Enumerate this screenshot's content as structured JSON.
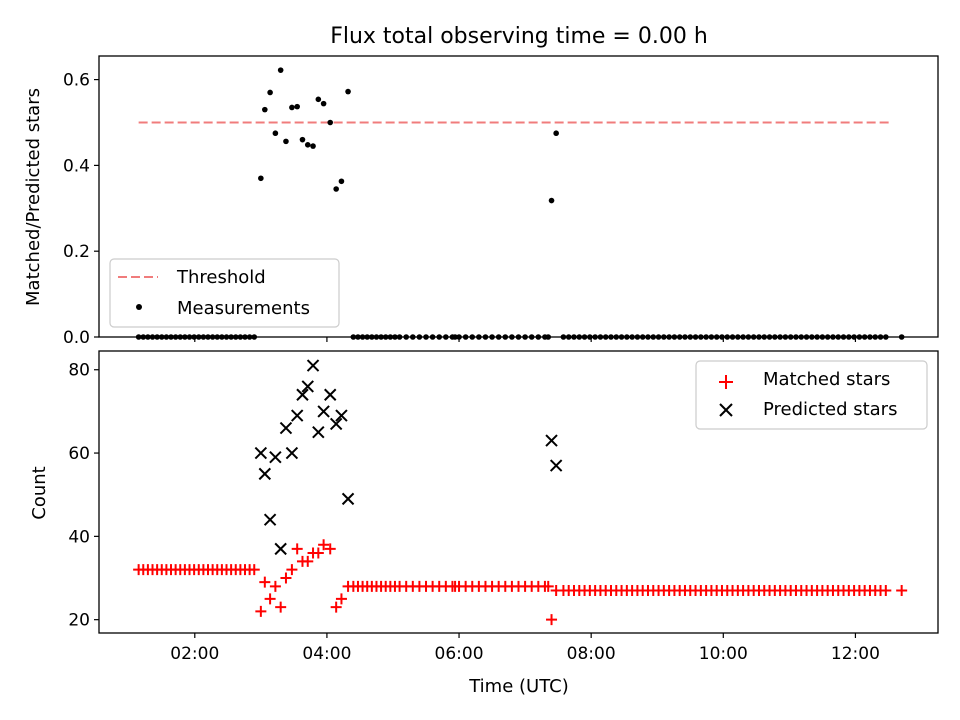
{
  "chart_data": [
    {
      "type": "scatter",
      "title": "Flux total observing time = 0.00 h",
      "xlabel": "",
      "ylabel": "Matched/Predicted stars",
      "xlim": [
        0.55,
        13.25
      ],
      "ylim": [
        0.0,
        0.655
      ],
      "yticks": [
        0.0,
        0.2,
        0.4,
        0.6
      ],
      "ytick_labels": [
        "0.0",
        "0.2",
        "0.4",
        "0.6"
      ],
      "xticks": [
        2,
        4,
        6,
        8,
        10,
        12
      ],
      "legend_position": "lower-left",
      "threshold": {
        "name": "Threshold",
        "value": 0.5,
        "x_range": [
          1.15,
          12.55
        ],
        "color": "#f07c7c"
      },
      "series": [
        {
          "name": "Measurements",
          "color": "#000000",
          "marker": "dot",
          "x": [
            3.0,
            3.06,
            3.14,
            3.22,
            3.3,
            3.38,
            3.47,
            3.55,
            3.63,
            3.71,
            3.79,
            3.87,
            3.95,
            4.05,
            4.14,
            4.22,
            4.32,
            7.4,
            7.47,
            1.15,
            1.22,
            1.29,
            1.36,
            1.43,
            1.5,
            1.57,
            1.64,
            1.71,
            1.78,
            1.85,
            1.92,
            1.99,
            2.06,
            2.13,
            2.2,
            2.27,
            2.34,
            2.41,
            2.48,
            2.55,
            2.62,
            2.69,
            2.76,
            2.83,
            2.9,
            4.4,
            4.47,
            4.54,
            4.61,
            4.68,
            4.75,
            4.82,
            4.89,
            4.96,
            5.03,
            5.1,
            5.2,
            5.3,
            5.4,
            5.5,
            5.6,
            5.7,
            5.8,
            5.9,
            5.94,
            6.0,
            6.1,
            6.2,
            6.3,
            6.4,
            6.5,
            6.6,
            6.7,
            6.8,
            6.9,
            7.0,
            7.1,
            7.2,
            7.3,
            7.35,
            7.58,
            7.66,
            7.74,
            7.82,
            7.9,
            7.98,
            8.06,
            8.14,
            8.22,
            8.3,
            8.38,
            8.46,
            8.54,
            8.62,
            8.7,
            8.78,
            8.86,
            8.94,
            9.02,
            9.1,
            9.18,
            9.26,
            9.34,
            9.42,
            9.5,
            9.58,
            9.66,
            9.74,
            9.82,
            9.9,
            9.98,
            10.06,
            10.14,
            10.22,
            10.3,
            10.38,
            10.46,
            10.54,
            10.62,
            10.7,
            10.78,
            10.86,
            10.94,
            11.02,
            11.1,
            11.18,
            11.26,
            11.34,
            11.42,
            11.5,
            11.58,
            11.66,
            11.74,
            11.82,
            11.9,
            11.98,
            12.06,
            12.14,
            12.22,
            12.3,
            12.38,
            12.46,
            12.7
          ],
          "y": [
            0.37,
            0.53,
            0.57,
            0.475,
            0.622,
            0.456,
            0.535,
            0.537,
            0.46,
            0.448,
            0.445,
            0.554,
            0.544,
            0.5,
            0.345,
            0.363,
            0.572,
            0.318,
            0.475,
            0,
            0,
            0,
            0,
            0,
            0,
            0,
            0,
            0,
            0,
            0,
            0,
            0,
            0,
            0,
            0,
            0,
            0,
            0,
            0,
            0,
            0,
            0,
            0,
            0,
            0,
            0,
            0,
            0,
            0,
            0,
            0,
            0,
            0,
            0,
            0,
            0,
            0,
            0,
            0,
            0,
            0,
            0,
            0,
            0,
            0,
            0,
            0,
            0,
            0,
            0,
            0,
            0,
            0,
            0,
            0,
            0,
            0,
            0,
            0,
            0,
            0,
            0,
            0,
            0,
            0,
            0,
            0,
            0,
            0,
            0,
            0,
            0,
            0,
            0,
            0,
            0,
            0,
            0,
            0,
            0,
            0,
            0,
            0,
            0,
            0,
            0,
            0,
            0,
            0,
            0,
            0,
            0,
            0,
            0,
            0,
            0,
            0,
            0,
            0,
            0,
            0,
            0,
            0,
            0,
            0,
            0,
            0,
            0,
            0,
            0,
            0,
            0,
            0,
            0,
            0,
            0,
            0,
            0,
            0,
            0,
            0,
            0,
            0
          ]
        }
      ]
    },
    {
      "type": "scatter",
      "title": "",
      "xlabel": "Time (UTC)",
      "ylabel": "Count",
      "xlim": [
        0.55,
        13.25
      ],
      "ylim": [
        16.8,
        84.5
      ],
      "yticks": [
        20,
        40,
        60,
        80
      ],
      "ytick_labels": [
        "20",
        "40",
        "60",
        "80"
      ],
      "xticks": [
        2,
        4,
        6,
        8,
        10,
        12
      ],
      "xtick_labels": [
        "02:00",
        "04:00",
        "06:00",
        "08:00",
        "10:00",
        "12:00"
      ],
      "legend_position": "top-right",
      "series": [
        {
          "name": "Matched stars",
          "color": "#ff0000",
          "marker": "plus",
          "x": [
            1.15,
            1.22,
            1.29,
            1.36,
            1.43,
            1.5,
            1.57,
            1.64,
            1.71,
            1.78,
            1.85,
            1.92,
            1.99,
            2.06,
            2.13,
            2.2,
            2.27,
            2.34,
            2.41,
            2.48,
            2.55,
            2.62,
            2.69,
            2.76,
            2.83,
            2.9,
            3.0,
            3.06,
            3.14,
            3.22,
            3.3,
            3.38,
            3.47,
            3.55,
            3.63,
            3.71,
            3.79,
            3.87,
            3.95,
            4.05,
            4.14,
            4.22,
            4.32,
            4.4,
            4.47,
            4.54,
            4.61,
            4.68,
            4.75,
            4.82,
            4.89,
            4.96,
            5.03,
            5.1,
            5.2,
            5.3,
            5.4,
            5.5,
            5.6,
            5.7,
            5.8,
            5.9,
            5.94,
            6.0,
            6.1,
            6.2,
            6.3,
            6.4,
            6.5,
            6.6,
            6.7,
            6.8,
            6.9,
            7.0,
            7.1,
            7.2,
            7.3,
            7.35,
            7.4,
            7.47,
            7.58,
            7.66,
            7.74,
            7.82,
            7.9,
            7.98,
            8.06,
            8.14,
            8.22,
            8.3,
            8.38,
            8.46,
            8.54,
            8.62,
            8.7,
            8.78,
            8.86,
            8.94,
            9.02,
            9.1,
            9.18,
            9.26,
            9.34,
            9.42,
            9.5,
            9.58,
            9.66,
            9.74,
            9.82,
            9.9,
            9.98,
            10.06,
            10.14,
            10.22,
            10.3,
            10.38,
            10.46,
            10.54,
            10.62,
            10.7,
            10.78,
            10.86,
            10.94,
            11.02,
            11.1,
            11.18,
            11.26,
            11.34,
            11.42,
            11.5,
            11.58,
            11.66,
            11.74,
            11.82,
            11.9,
            11.98,
            12.06,
            12.14,
            12.22,
            12.3,
            12.38,
            12.46,
            12.7
          ],
          "y": [
            32,
            32,
            32,
            32,
            32,
            32,
            32,
            32,
            32,
            32,
            32,
            32,
            32,
            32,
            32,
            32,
            32,
            32,
            32,
            32,
            32,
            32,
            32,
            32,
            32,
            32,
            22,
            29,
            25,
            28,
            23,
            30,
            32,
            37,
            34,
            34,
            36,
            36,
            38,
            37,
            23,
            25,
            28,
            28,
            28,
            28,
            28,
            28,
            28,
            28,
            28,
            28,
            28,
            28,
            28,
            28,
            28,
            28,
            28,
            28,
            28,
            28,
            28,
            28,
            28,
            28,
            28,
            28,
            28,
            28,
            28,
            28,
            28,
            28,
            28,
            28,
            28,
            28,
            20,
            27,
            27,
            27,
            27,
            27,
            27,
            27,
            27,
            27,
            27,
            27,
            27,
            27,
            27,
            27,
            27,
            27,
            27,
            27,
            27,
            27,
            27,
            27,
            27,
            27,
            27,
            27,
            27,
            27,
            27,
            27,
            27,
            27,
            27,
            27,
            27,
            27,
            27,
            27,
            27,
            27,
            27,
            27,
            27,
            27,
            27,
            27,
            27,
            27,
            27,
            27,
            27,
            27,
            27,
            27,
            27,
            27,
            27,
            27,
            27,
            27,
            27,
            27,
            27
          ]
        },
        {
          "name": "Predicted stars",
          "color": "#000000",
          "marker": "x",
          "x": [
            3.0,
            3.06,
            3.14,
            3.22,
            3.3,
            3.38,
            3.47,
            3.55,
            3.63,
            3.71,
            3.79,
            3.87,
            3.95,
            4.05,
            4.14,
            4.22,
            4.32,
            7.4,
            7.47
          ],
          "y": [
            60,
            55,
            44,
            59,
            37,
            66,
            60,
            69,
            74,
            76,
            81,
            65,
            70,
            74,
            67,
            69,
            49,
            63,
            57
          ]
        }
      ]
    }
  ]
}
